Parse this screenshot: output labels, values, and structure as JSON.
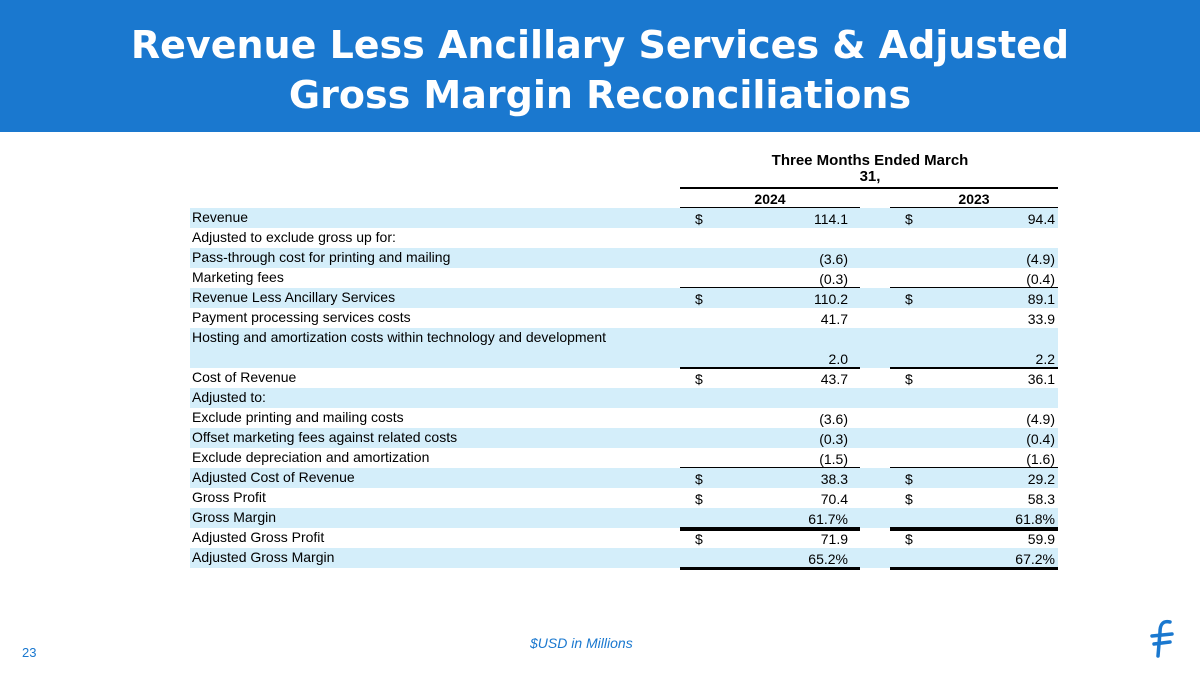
{
  "header": {
    "title": "Revenue Less Ancillary Services & Adjusted Gross Margin Reconciliations"
  },
  "table": {
    "period": "Three Months Ended March 31,",
    "years": [
      "2024",
      "2023"
    ],
    "rows": [
      {
        "label": "Revenue",
        "sign_a": "$",
        "a": "114.1",
        "sign_b": "$",
        "b": "94.4"
      },
      {
        "label": "Adjusted to exclude gross up for:"
      },
      {
        "label": "Pass-through cost for printing and mailing",
        "a": "(3.6)",
        "b": "(4.9)"
      },
      {
        "label": "Marketing fees",
        "a": "(0.3)",
        "b": "(0.4)"
      },
      {
        "label": "Revenue Less Ancillary Services",
        "sign_a": "$",
        "a": "110.2",
        "sign_b": "$",
        "b": "89.1"
      },
      {
        "label": "Payment processing services costs",
        "a": "41.7",
        "b": "33.9"
      },
      {
        "label": "Hosting and amortization costs within technology and development",
        "a": "2.0",
        "b": "2.2"
      },
      {
        "label": "Cost of Revenue",
        "sign_a": "$",
        "a": "43.7",
        "sign_b": "$",
        "b": "36.1"
      },
      {
        "label": "Adjusted to:"
      },
      {
        "label": "Exclude printing and mailing costs",
        "a": "(3.6)",
        "b": "(4.9)"
      },
      {
        "label": "Offset marketing fees against related costs",
        "a": "(0.3)",
        "b": "(0.4)"
      },
      {
        "label": "Exclude depreciation and amortization",
        "a": "(1.5)",
        "b": "(1.6)"
      },
      {
        "label": "Adjusted Cost of Revenue",
        "sign_a": "$",
        "a": "38.3",
        "sign_b": "$",
        "b": "29.2"
      },
      {
        "label": "Gross Profit",
        "sign_a": "$",
        "a": "70.4",
        "sign_b": "$",
        "b": "58.3"
      },
      {
        "label": "Gross Margin",
        "a": "61.7%",
        "b": "61.8%"
      },
      {
        "label": "Adjusted Gross Profit",
        "sign_a": "$",
        "a": "71.9",
        "sign_b": "$",
        "b": "59.9"
      },
      {
        "label": "Adjusted Gross Margin",
        "a": "65.2%",
        "b": "67.2%"
      }
    ]
  },
  "footer": {
    "note": "$USD in Millions",
    "page": "23"
  }
}
